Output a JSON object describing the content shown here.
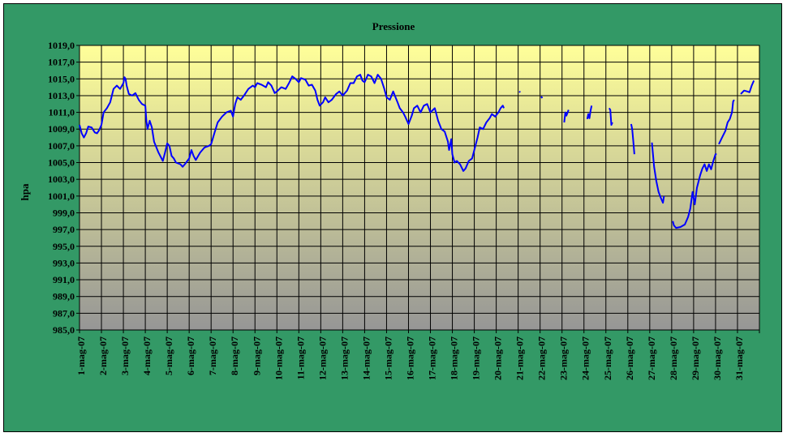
{
  "chart_data": {
    "type": "line",
    "title": "Pressione",
    "xlabel": "",
    "ylabel": "hpa",
    "ylim": [
      985,
      1019
    ],
    "yticks": [
      1019,
      1017,
      1015,
      1013,
      1011,
      1009,
      1007,
      1005,
      1003,
      1001,
      999,
      997,
      995,
      993,
      991,
      989,
      987,
      985
    ],
    "ytick_labels": [
      "1019,0",
      "1017,0",
      "1015,0",
      "1013,0",
      "1011,0",
      "1009,0",
      "1007,0",
      "1005,0",
      "1003,0",
      "1001,0",
      "999,0",
      "997,0",
      "995,0",
      "993,0",
      "991,0",
      "989,0",
      "987,0",
      "985,0"
    ],
    "categories": [
      "1-mag-07",
      "2-mag-07",
      "3-mag-07",
      "4-mag-07",
      "5-mag-07",
      "6-mag-07",
      "7-mag-07",
      "8-mag-07",
      "9-mag-07",
      "10-mag-07",
      "11-mag-07",
      "12-mag-07",
      "13-mag-07",
      "14-mag-07",
      "15-mag-07",
      "16-mag-07",
      "17-mag-07",
      "18-mag-07",
      "19-mag-07",
      "20-mag-07",
      "21-mag-07",
      "22-mag-07",
      "23-mag-07",
      "24-mag-07",
      "25-mag-07",
      "26-mag-07",
      "27-mag-07",
      "28-mag-07",
      "29-mag-07",
      "30-mag-07",
      "31-mag-07"
    ],
    "grid": true,
    "colors": {
      "background": "#339966",
      "line": "#0000ff",
      "plot_top": "#ffff99",
      "plot_bottom": "#969696"
    },
    "series": [
      {
        "name": "",
        "segments": [
          [
            [
              0.0,
              1009.5
            ],
            [
              0.1,
              1008.5
            ],
            [
              0.2,
              1008.0
            ],
            [
              0.3,
              1008.5
            ],
            [
              0.4,
              1009.3
            ],
            [
              0.55,
              1009.2
            ],
            [
              0.7,
              1008.6
            ],
            [
              0.8,
              1008.5
            ],
            [
              0.9,
              1008.9
            ],
            [
              1.0,
              1009.5
            ],
            [
              1.1,
              1011.0
            ],
            [
              1.25,
              1011.5
            ],
            [
              1.4,
              1012.2
            ],
            [
              1.55,
              1013.8
            ],
            [
              1.7,
              1014.2
            ],
            [
              1.85,
              1013.8
            ],
            [
              2.0,
              1014.5
            ],
            [
              2.05,
              1015.2
            ],
            [
              2.1,
              1015.0
            ],
            [
              2.15,
              1014.2
            ],
            [
              2.25,
              1013.2
            ],
            [
              2.4,
              1013.0
            ],
            [
              2.55,
              1013.3
            ],
            [
              2.7,
              1012.5
            ],
            [
              2.85,
              1012.0
            ],
            [
              3.0,
              1011.8
            ],
            [
              3.05,
              1010.0
            ],
            [
              3.1,
              1009.0
            ],
            [
              3.2,
              1010.0
            ],
            [
              3.3,
              1009.2
            ],
            [
              3.4,
              1007.5
            ],
            [
              3.6,
              1006.2
            ],
            [
              3.8,
              1005.2
            ],
            [
              3.9,
              1006.2
            ],
            [
              4.0,
              1007.3
            ],
            [
              4.1,
              1007.0
            ],
            [
              4.2,
              1005.8
            ],
            [
              4.3,
              1005.5
            ],
            [
              4.4,
              1005.0
            ],
            [
              4.6,
              1004.8
            ],
            [
              4.7,
              1004.5
            ],
            [
              4.8,
              1004.8
            ],
            [
              5.0,
              1005.5
            ],
            [
              5.1,
              1006.5
            ],
            [
              5.2,
              1005.8
            ],
            [
              5.3,
              1005.3
            ],
            [
              5.5,
              1006.2
            ],
            [
              5.7,
              1006.8
            ],
            [
              5.9,
              1007.0
            ],
            [
              6.0,
              1007.2
            ],
            [
              6.15,
              1008.5
            ],
            [
              6.3,
              1009.8
            ],
            [
              6.5,
              1010.5
            ],
            [
              6.7,
              1011.0
            ],
            [
              6.9,
              1011.2
            ],
            [
              7.0,
              1010.5
            ],
            [
              7.1,
              1012.0
            ],
            [
              7.2,
              1012.8
            ],
            [
              7.35,
              1012.5
            ],
            [
              7.5,
              1013.0
            ],
            [
              7.7,
              1013.8
            ],
            [
              7.9,
              1014.2
            ],
            [
              8.0,
              1014.0
            ],
            [
              8.1,
              1014.5
            ],
            [
              8.3,
              1014.3
            ],
            [
              8.5,
              1014.0
            ],
            [
              8.6,
              1014.6
            ],
            [
              8.75,
              1014.2
            ],
            [
              8.9,
              1013.3
            ],
            [
              9.0,
              1013.5
            ],
            [
              9.2,
              1014.0
            ],
            [
              9.4,
              1013.8
            ],
            [
              9.55,
              1014.5
            ],
            [
              9.7,
              1015.3
            ],
            [
              9.85,
              1015.0
            ],
            [
              10.0,
              1014.6
            ],
            [
              10.1,
              1015.1
            ],
            [
              10.3,
              1014.9
            ],
            [
              10.45,
              1014.2
            ],
            [
              10.6,
              1014.3
            ],
            [
              10.75,
              1013.6
            ],
            [
              10.85,
              1012.5
            ],
            [
              10.95,
              1011.8
            ],
            [
              11.1,
              1012.2
            ],
            [
              11.2,
              1012.8
            ],
            [
              11.35,
              1012.2
            ],
            [
              11.5,
              1012.5
            ],
            [
              11.7,
              1013.2
            ],
            [
              11.85,
              1013.5
            ],
            [
              12.0,
              1013.0
            ],
            [
              12.2,
              1013.6
            ],
            [
              12.35,
              1014.5
            ],
            [
              12.5,
              1014.5
            ],
            [
              12.65,
              1015.3
            ],
            [
              12.8,
              1015.5
            ],
            [
              12.9,
              1014.8
            ],
            [
              13.0,
              1014.6
            ],
            [
              13.15,
              1015.5
            ],
            [
              13.3,
              1015.3
            ],
            [
              13.45,
              1014.5
            ],
            [
              13.6,
              1015.5
            ],
            [
              13.75,
              1015.0
            ],
            [
              13.9,
              1013.8
            ],
            [
              14.0,
              1012.8
            ],
            [
              14.15,
              1012.5
            ],
            [
              14.3,
              1013.5
            ],
            [
              14.5,
              1012.2
            ],
            [
              14.6,
              1011.5
            ],
            [
              14.75,
              1011.0
            ],
            [
              14.85,
              1010.5
            ],
            [
              15.0,
              1009.6
            ],
            [
              15.15,
              1010.6
            ],
            [
              15.25,
              1011.5
            ],
            [
              15.4,
              1011.8
            ],
            [
              15.55,
              1011.0
            ],
            [
              15.7,
              1011.8
            ],
            [
              15.85,
              1012.0
            ],
            [
              16.0,
              1011.0
            ],
            [
              16.2,
              1011.5
            ],
            [
              16.35,
              1010.0
            ],
            [
              16.5,
              1009.0
            ],
            [
              16.65,
              1008.7
            ],
            [
              16.8,
              1007.5
            ],
            [
              16.85,
              1006.5
            ],
            [
              16.95,
              1007.8
            ],
            [
              17.0,
              1006.0
            ],
            [
              17.1,
              1005.0
            ],
            [
              17.2,
              1005.2
            ],
            [
              17.35,
              1004.8
            ],
            [
              17.5,
              1004.0
            ],
            [
              17.6,
              1004.3
            ],
            [
              17.75,
              1005.2
            ],
            [
              17.9,
              1005.5
            ],
            [
              18.0,
              1006.5
            ],
            [
              18.15,
              1008.0
            ],
            [
              18.25,
              1009.2
            ],
            [
              18.4,
              1009.0
            ],
            [
              18.55,
              1009.8
            ],
            [
              18.7,
              1010.3
            ],
            [
              18.8,
              1010.8
            ],
            [
              18.95,
              1010.5
            ],
            [
              19.1,
              1011.0
            ],
            [
              19.2,
              1011.5
            ],
            [
              19.3,
              1011.8
            ],
            [
              19.35,
              1011.5
            ]
          ],
          [
            [
              20.05,
              1013.5
            ],
            [
              20.1,
              1013.4
            ]
          ],
          [
            [
              21.05,
              1012.9
            ],
            [
              21.1,
              1012.7
            ]
          ],
          [
            [
              22.1,
              1009.8
            ],
            [
              22.15,
              1011.0
            ],
            [
              22.2,
              1010.6
            ],
            [
              22.3,
              1011.3
            ]
          ],
          [
            [
              23.15,
              1010.2
            ],
            [
              23.2,
              1010.8
            ],
            [
              23.25,
              1010.3
            ],
            [
              23.3,
              1011.2
            ],
            [
              23.35,
              1011.8
            ]
          ],
          [
            [
              24.15,
              1011.5
            ],
            [
              24.2,
              1011.3
            ],
            [
              24.25,
              1009.5
            ],
            [
              24.3,
              1009.8
            ]
          ],
          [
            [
              25.15,
              1009.6
            ],
            [
              25.2,
              1009.0
            ],
            [
              25.25,
              1007.5
            ],
            [
              25.3,
              1006.0
            ]
          ],
          [
            [
              26.1,
              1007.4
            ],
            [
              26.2,
              1004.5
            ],
            [
              26.3,
              1002.8
            ],
            [
              26.4,
              1001.5
            ],
            [
              26.5,
              1000.8
            ],
            [
              26.6,
              1000.2
            ],
            [
              26.65,
              1001.0
            ]
          ],
          [
            [
              27.05,
              998.0
            ],
            [
              27.1,
              997.5
            ],
            [
              27.2,
              997.2
            ],
            [
              27.4,
              997.3
            ],
            [
              27.6,
              997.6
            ],
            [
              27.75,
              998.5
            ],
            [
              27.85,
              999.5
            ],
            [
              27.95,
              1001.5
            ],
            [
              28.05,
              1000.0
            ],
            [
              28.15,
              1002.0
            ],
            [
              28.3,
              1003.5
            ],
            [
              28.4,
              1004.3
            ],
            [
              28.5,
              1004.8
            ],
            [
              28.6,
              1004.0
            ],
            [
              28.7,
              1004.8
            ],
            [
              28.8,
              1004.2
            ],
            [
              28.9,
              1005.2
            ],
            [
              29.0,
              1006.0
            ],
            [
              29.05,
              1006.0
            ]
          ],
          [
            [
              29.15,
              1007.2
            ],
            [
              29.3,
              1008.0
            ],
            [
              29.45,
              1008.8
            ],
            [
              29.55,
              1009.8
            ],
            [
              29.65,
              1010.2
            ],
            [
              29.75,
              1011.0
            ],
            [
              29.8,
              1012.3
            ],
            [
              29.85,
              1012.5
            ]
          ],
          [
            [
              30.15,
              1013.2
            ],
            [
              30.3,
              1013.6
            ],
            [
              30.45,
              1013.5
            ],
            [
              30.55,
              1013.4
            ],
            [
              30.65,
              1014.2
            ],
            [
              30.75,
              1014.8
            ]
          ]
        ]
      }
    ]
  }
}
